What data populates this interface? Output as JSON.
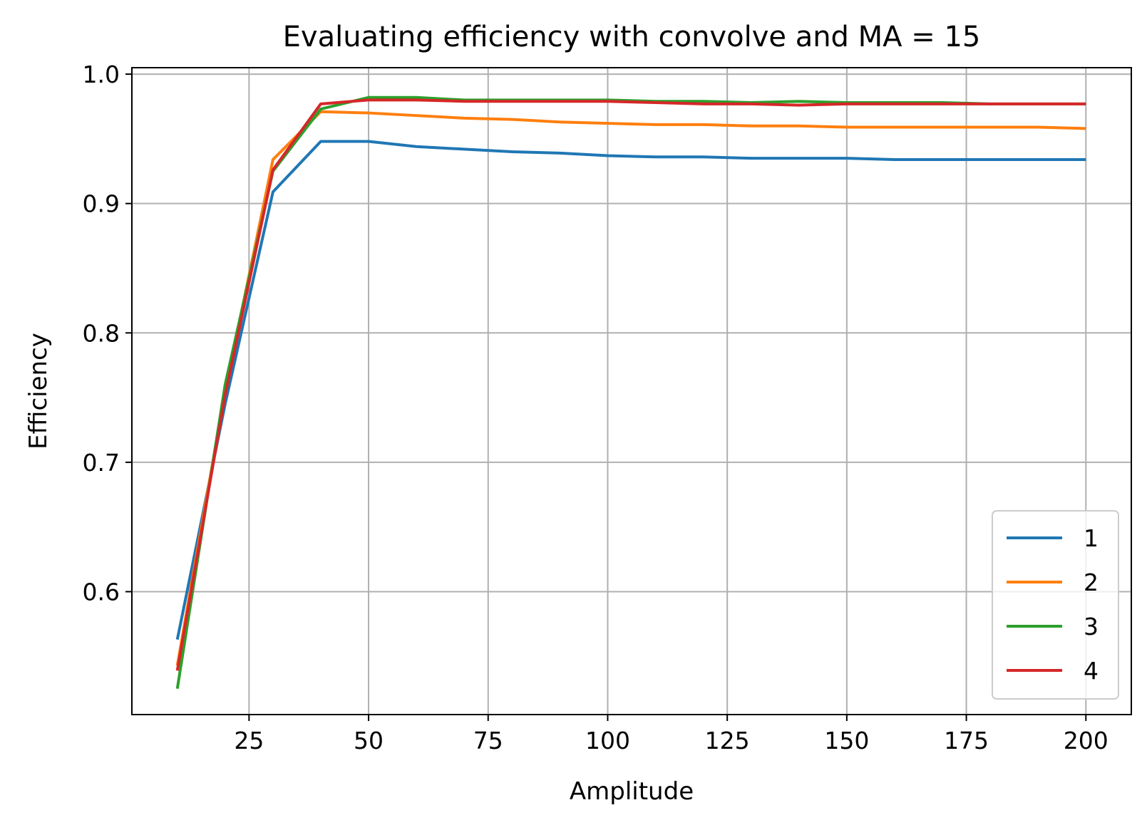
{
  "chart_data": {
    "type": "line",
    "title": "Evaluating efficiency with convolve and MA = 15",
    "xlabel": "Amplitude",
    "ylabel": "Efficiency",
    "xlim": [
      0.5,
      209.5
    ],
    "ylim": [
      0.505,
      1.005
    ],
    "xticks": [
      25,
      50,
      75,
      100,
      125,
      150,
      175,
      200
    ],
    "yticks": [
      0.6,
      0.7,
      0.8,
      0.9,
      1.0
    ],
    "xtick_labels": [
      "25",
      "50",
      "75",
      "100",
      "125",
      "150",
      "175",
      "200"
    ],
    "ytick_labels": [
      "0.6",
      "0.7",
      "0.8",
      "0.9",
      "1.0"
    ],
    "grid": true,
    "legend_position": "lower-right",
    "x": [
      10,
      20,
      30,
      40,
      50,
      60,
      70,
      80,
      90,
      100,
      110,
      120,
      130,
      140,
      150,
      160,
      170,
      180,
      190,
      200
    ],
    "series": [
      {
        "name": "1",
        "color": "#1f77b4",
        "values": [
          0.563,
          0.745,
          0.909,
          0.948,
          0.948,
          0.944,
          0.942,
          0.94,
          0.939,
          0.937,
          0.936,
          0.936,
          0.935,
          0.935,
          0.935,
          0.934,
          0.934,
          0.934,
          0.934,
          0.934
        ]
      },
      {
        "name": "2",
        "color": "#ff7f0e",
        "values": [
          0.543,
          0.755,
          0.934,
          0.971,
          0.97,
          0.968,
          0.966,
          0.965,
          0.963,
          0.962,
          0.961,
          0.961,
          0.96,
          0.96,
          0.959,
          0.959,
          0.959,
          0.959,
          0.959,
          0.958
        ]
      },
      {
        "name": "3",
        "color": "#2ca02c",
        "values": [
          0.525,
          0.76,
          0.925,
          0.973,
          0.982,
          0.982,
          0.98,
          0.98,
          0.98,
          0.98,
          0.979,
          0.979,
          0.978,
          0.979,
          0.978,
          0.978,
          0.978,
          0.977,
          0.977,
          0.977
        ]
      },
      {
        "name": "4",
        "color": "#d62728",
        "values": [
          0.539,
          0.752,
          0.926,
          0.977,
          0.98,
          0.98,
          0.979,
          0.979,
          0.979,
          0.979,
          0.978,
          0.977,
          0.977,
          0.976,
          0.977,
          0.977,
          0.977,
          0.977,
          0.977,
          0.977
        ]
      }
    ]
  }
}
